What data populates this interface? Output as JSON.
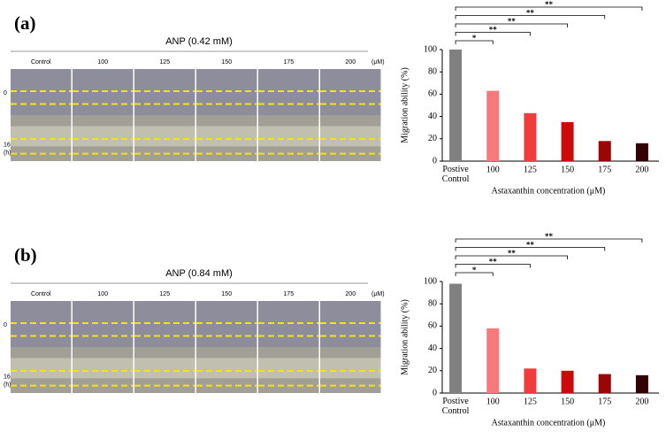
{
  "panels": [
    {
      "label": "(a)",
      "image_title": "ANP (0.42 mM)",
      "columns": [
        "Control",
        "100",
        "125",
        "150",
        "175",
        "200"
      ],
      "unit": "(μM)",
      "rows": [
        "0",
        "16 (h)"
      ]
    },
    {
      "label": "(b)",
      "image_title": "ANP (0.84 mM)",
      "columns": [
        "Control",
        "100",
        "125",
        "150",
        "175",
        "200"
      ],
      "unit": "(μM)",
      "rows": [
        "0",
        "16 (h)"
      ]
    }
  ],
  "chart_data": [
    {
      "type": "bar",
      "ylabel": "Migration ability (%)",
      "xlabel": "Astaxanthin concentration (μM)",
      "categories": [
        "Postive Control",
        "100",
        "125",
        "150",
        "175",
        "200"
      ],
      "values": [
        100,
        63,
        43,
        35,
        18,
        16
      ],
      "colors": [
        "#808080",
        "#f77a7a",
        "#f03c3c",
        "#cc0a0a",
        "#9c0505",
        "#330202"
      ],
      "significance": [
        null,
        "*",
        "**",
        "**",
        "**",
        "**"
      ],
      "ylim": [
        0,
        100
      ],
      "yticks": [
        0,
        20,
        40,
        60,
        80,
        100
      ]
    },
    {
      "type": "bar",
      "ylabel": "Migration ability (%)",
      "xlabel": "Astaxanthin concentration (μM)",
      "categories": [
        "Postive Control",
        "100",
        "125",
        "150",
        "175",
        "200"
      ],
      "values": [
        98,
        58,
        22,
        20,
        17,
        16
      ],
      "colors": [
        "#808080",
        "#f77a7a",
        "#f03c3c",
        "#cc0a0a",
        "#9c0505",
        "#330202"
      ],
      "significance": [
        null,
        "*",
        "**",
        "**",
        "**",
        "**"
      ],
      "ylim": [
        0,
        100
      ],
      "yticks": [
        0,
        20,
        40,
        60,
        80,
        100
      ]
    }
  ]
}
